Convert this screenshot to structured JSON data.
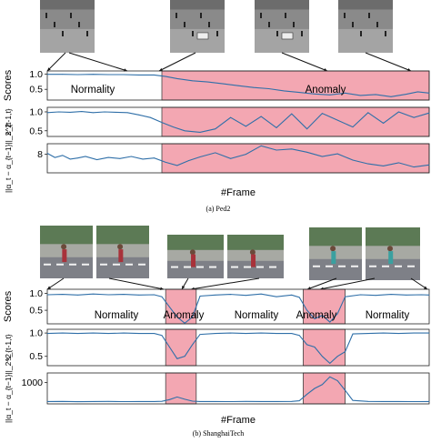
{
  "panels": [
    {
      "caption": "(a) Ped2",
      "xlabel": "#Frame",
      "colors": {
        "anomaly_fill": "#f3a7b2",
        "anomaly_border": "#444444",
        "line": "#2f6fa8"
      },
      "images": [
        {
          "name": "ped2-frame-normal",
          "scene": "gray-walkway"
        },
        {
          "name": "ped2-frame-anomaly-1",
          "scene": "gray-walkway-cart"
        },
        {
          "name": "ped2-frame-anomaly-2",
          "scene": "gray-walkway-cart"
        },
        {
          "name": "ped2-frame-anomaly-3",
          "scene": "gray-walkway"
        }
      ],
      "region_labels": [
        "Normality",
        "Anomaly"
      ],
      "chart_data": [
        {
          "type": "line",
          "ylabel": "Scores",
          "yticks": [
            "1.0",
            "0.5"
          ],
          "ylim": [
            0.15,
            1.1
          ],
          "xlim": [
            0,
            100
          ],
          "anomaly_regions": [
            [
              30,
              100
            ]
          ],
          "series": [
            {
              "x": [
                0,
                4,
                8,
                12,
                16,
                20,
                24,
                28,
                31,
                34,
                38,
                42,
                46,
                50,
                54,
                58,
                62,
                66,
                70,
                74,
                78,
                82,
                86,
                90,
                94,
                97,
                100
              ],
              "values": [
                0.99,
                0.99,
                0.98,
                0.99,
                0.98,
                0.98,
                0.97,
                0.97,
                0.92,
                0.85,
                0.78,
                0.74,
                0.68,
                0.62,
                0.56,
                0.52,
                0.45,
                0.4,
                0.35,
                0.32,
                0.38,
                0.3,
                0.33,
                0.26,
                0.34,
                0.42,
                0.38
              ]
            }
          ]
        },
        {
          "type": "line",
          "ylabel": "s_{t-1,t}",
          "yticks": [
            "1.0",
            "0.5"
          ],
          "ylim": [
            0.35,
            1.12
          ],
          "xlim": [
            0,
            100
          ],
          "anomaly_regions": [
            [
              30,
              100
            ]
          ],
          "series": [
            {
              "x": [
                0,
                3,
                6,
                9,
                12,
                15,
                18,
                21,
                24,
                27,
                30,
                33,
                36,
                40,
                44,
                48,
                52,
                56,
                60,
                64,
                68,
                72,
                76,
                80,
                84,
                88,
                92,
                96,
                100
              ],
              "values": [
                0.98,
                1.0,
                0.99,
                1.01,
                0.98,
                1.0,
                0.99,
                0.98,
                0.92,
                0.85,
                0.72,
                0.6,
                0.5,
                0.46,
                0.55,
                0.85,
                0.62,
                0.88,
                0.58,
                0.95,
                0.55,
                0.96,
                0.78,
                0.6,
                0.98,
                0.7,
                1.0,
                0.85,
                0.97
              ]
            }
          ]
        },
        {
          "type": "line",
          "ylabel": "||α_t − α_{t−1}||_2^2",
          "yticks": [
            "8"
          ],
          "ylim": [
            4.5,
            10
          ],
          "xlim": [
            0,
            100
          ],
          "anomaly_regions": [
            [
              30,
              100
            ]
          ],
          "series": [
            {
              "x": [
                0,
                2,
                4,
                6,
                8,
                10,
                13,
                16,
                19,
                22,
                25,
                28,
                31,
                34,
                37,
                40,
                44,
                48,
                52,
                56,
                60,
                64,
                68,
                72,
                76,
                80,
                84,
                88,
                92,
                96,
                100
              ],
              "values": [
                8.2,
                7.4,
                7.8,
                7.1,
                7.3,
                7.6,
                7.0,
                7.4,
                7.2,
                7.6,
                7.1,
                7.3,
                6.5,
                5.9,
                6.8,
                7.5,
                8.3,
                7.2,
                8.0,
                9.6,
                8.8,
                9.0,
                8.4,
                7.6,
                8.1,
                6.9,
                6.2,
                5.8,
                6.4,
                5.6,
                6.0
              ]
            }
          ]
        }
      ]
    },
    {
      "caption": "(b) ShanghaiTech",
      "xlabel": "#Frame",
      "colors": {
        "anomaly_fill": "#f3a7b2",
        "anomaly_border": "#444444",
        "line": "#2f6fa8"
      },
      "images": [
        {
          "name": "sh-frame-normal-1",
          "scene": "plaza-walker"
        },
        {
          "name": "sh-frame-normal-2",
          "scene": "plaza-walker"
        },
        {
          "name": "sh-frame-anomaly-1",
          "scene": "park-fight"
        },
        {
          "name": "sh-frame-anomaly-2",
          "scene": "park-fight"
        },
        {
          "name": "sh-frame-anomaly-3",
          "scene": "park-jump"
        },
        {
          "name": "sh-frame-anomaly-4",
          "scene": "park-jump"
        }
      ],
      "region_labels": [
        "Normality",
        "Anomaly",
        "Normality",
        "Anomaly",
        "Normality"
      ],
      "chart_data": [
        {
          "type": "line",
          "ylabel": "Scores",
          "yticks": [
            "1.0",
            "0.5"
          ],
          "ylim": [
            0.1,
            1.12
          ],
          "xlim": [
            0,
            100
          ],
          "anomaly_regions": [
            [
              31,
              39
            ],
            [
              67,
              78
            ]
          ],
          "series": [
            {
              "x": [
                0,
                4,
                8,
                12,
                16,
                20,
                24,
                28,
                30,
                32,
                34,
                36,
                38,
                40,
                44,
                48,
                52,
                56,
                60,
                64,
                66,
                68,
                70,
                72,
                74,
                76,
                78,
                82,
                86,
                90,
                94,
                98,
                100
              ],
              "values": [
                0.96,
                0.97,
                0.95,
                0.98,
                0.96,
                0.97,
                0.95,
                0.96,
                0.9,
                0.6,
                0.3,
                0.12,
                0.3,
                0.92,
                0.95,
                0.97,
                0.94,
                0.98,
                0.9,
                0.95,
                0.88,
                0.5,
                0.25,
                0.35,
                0.15,
                0.4,
                0.9,
                0.96,
                0.94,
                0.97,
                0.95,
                0.96,
                0.95
              ]
            }
          ]
        },
        {
          "type": "line",
          "ylabel": "s_{t-1,t}",
          "yticks": [
            "1.0",
            "0.5"
          ],
          "ylim": [
            0.3,
            1.08
          ],
          "xlim": [
            0,
            100
          ],
          "anomaly_regions": [
            [
              31,
              39
            ],
            [
              67,
              78
            ]
          ],
          "series": [
            {
              "x": [
                0,
                4,
                8,
                12,
                16,
                20,
                24,
                28,
                30,
                32,
                34,
                36,
                38,
                40,
                44,
                48,
                52,
                56,
                60,
                64,
                66,
                68,
                70,
                72,
                74,
                76,
                78,
                80,
                84,
                88,
                92,
                96,
                100
              ],
              "values": [
                0.99,
                1.0,
                0.99,
                1.0,
                0.99,
                1.0,
                0.99,
                0.99,
                0.95,
                0.7,
                0.45,
                0.5,
                0.75,
                0.97,
                0.99,
                1.0,
                0.99,
                1.0,
                0.99,
                0.99,
                0.95,
                0.75,
                0.7,
                0.5,
                0.35,
                0.5,
                0.6,
                0.98,
                0.99,
                1.0,
                0.99,
                1.0,
                1.0
              ]
            }
          ]
        },
        {
          "type": "line",
          "ylabel": "||α_t − α_{t−1}||_2^2",
          "yticks": [
            "1000"
          ],
          "ylim": [
            -100,
            1500
          ],
          "xlim": [
            0,
            100
          ],
          "anomaly_regions": [
            [
              31,
              39
            ],
            [
              67,
              78
            ]
          ],
          "series": [
            {
              "x": [
                0,
                4,
                8,
                12,
                16,
                20,
                24,
                28,
                30,
                32,
                34,
                36,
                38,
                40,
                44,
                48,
                52,
                56,
                60,
                64,
                66,
                68,
                70,
                72,
                74,
                76,
                78,
                80,
                84,
                88,
                92,
                96,
                100
              ],
              "values": [
                20,
                25,
                15,
                20,
                25,
                18,
                22,
                20,
                30,
                120,
                260,
                140,
                40,
                20,
                22,
                18,
                25,
                20,
                22,
                25,
                60,
                400,
                700,
                900,
                1300,
                1100,
                600,
                80,
                25,
                20,
                22,
                18,
                20
              ]
            }
          ]
        }
      ]
    }
  ]
}
